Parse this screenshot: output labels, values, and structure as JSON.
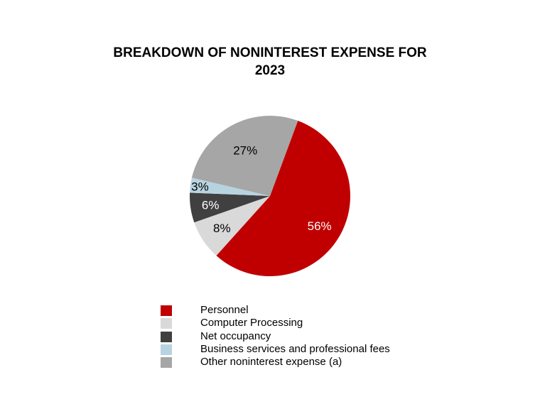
{
  "chart_data": {
    "type": "pie",
    "title_lines": [
      "BREAKDOWN OF NONINTEREST EXPENSE FOR",
      "2023"
    ],
    "legend_position": "bottom",
    "slices": [
      {
        "name": "Personnel",
        "value": 56,
        "label": "56%",
        "color": "#c00000",
        "label_color": "#ffffff"
      },
      {
        "name": "Computer Processing",
        "value": 8,
        "label": "8%",
        "color": "#d9d9d9",
        "label_color": "#000000"
      },
      {
        "name": "Net occupancy",
        "value": 6,
        "label": "6%",
        "color": "#404040",
        "label_color": "#ffffff"
      },
      {
        "name": "Business services and professional fees",
        "value": 3,
        "label": "3%",
        "color": "#b8d3e0",
        "label_color": "#000000"
      },
      {
        "name": "Other noninterest expense (a)",
        "value": 27,
        "label": "27%",
        "color": "#a6a6a6",
        "label_color": "#000000"
      }
    ]
  }
}
